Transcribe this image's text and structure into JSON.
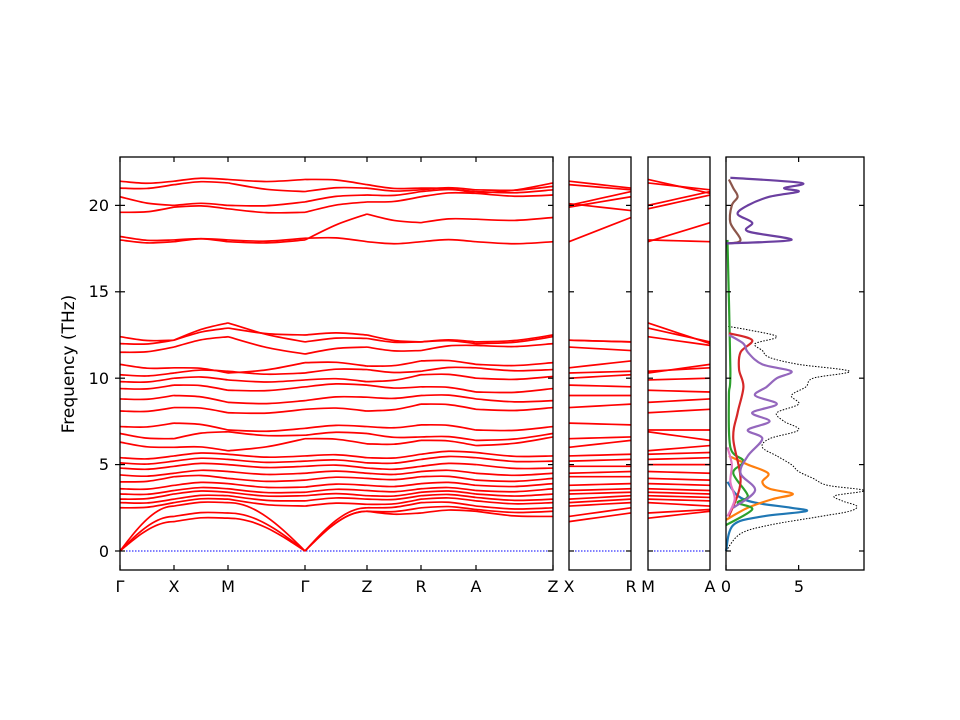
{
  "chart_data": {
    "type": "line",
    "ylabel": "Frequency (THz)",
    "ylim": [
      -1.1,
      22.8
    ],
    "yticks": [
      0,
      5,
      10,
      15,
      20
    ],
    "yticks_labels": [
      "0",
      "5",
      "10",
      "15",
      "20"
    ],
    "band_color": "#ff0000",
    "zero_line_color": "#0000ff",
    "band_panels": [
      {
        "id": "main",
        "labels": [
          "Γ",
          "X",
          "M",
          "Γ",
          "Z",
          "R",
          "A",
          "Z"
        ]
      },
      {
        "id": "xr",
        "labels": [
          "X",
          "R"
        ]
      },
      {
        "id": "ma",
        "labels": [
          "M",
          "A"
        ]
      }
    ],
    "band_frequencies": [
      {
        "id": "acoustic-1",
        "values_at_points": [
          0,
          1.7,
          1.9,
          0,
          2.3,
          2.2,
          2.3,
          2.0
        ],
        "xr": [
          1.7,
          2.2
        ],
        "ma": [
          1.9,
          2.3
        ]
      },
      {
        "id": "acoustic-2",
        "values_at_points": [
          0,
          2.0,
          2.2,
          0,
          2.3,
          2.5,
          2.4,
          2.3
        ],
        "xr": [
          2.0,
          2.5
        ],
        "ma": [
          2.2,
          2.4
        ]
      },
      {
        "id": "acoustic-3",
        "values_at_points": [
          0,
          2.6,
          2.8,
          0,
          2.5,
          2.8,
          2.6,
          2.5
        ],
        "xr": [
          2.6,
          2.8
        ],
        "ma": [
          2.8,
          2.6
        ]
      },
      {
        "id": "opt-2.5",
        "values_at_points": [
          2.5,
          2.8,
          3.0,
          2.6,
          2.7,
          3.0,
          2.9,
          2.8
        ],
        "xr": [
          2.8,
          3.0
        ],
        "ma": [
          3.0,
          2.9
        ]
      },
      {
        "id": "opt-2.8",
        "values_at_points": [
          2.8,
          3.0,
          3.2,
          2.9,
          3.0,
          3.2,
          3.1,
          3.0
        ],
        "xr": [
          3.0,
          3.2
        ],
        "ma": [
          3.2,
          3.1
        ]
      },
      {
        "id": "opt-3.0",
        "values_at_points": [
          3.0,
          3.3,
          3.4,
          3.2,
          3.2,
          3.4,
          3.3,
          3.3
        ],
        "xr": [
          3.3,
          3.4
        ],
        "ma": [
          3.4,
          3.3
        ]
      },
      {
        "id": "opt-3.3",
        "values_at_points": [
          3.3,
          3.5,
          3.6,
          3.4,
          3.5,
          3.6,
          3.5,
          3.6
        ],
        "xr": [
          3.5,
          3.6
        ],
        "ma": [
          3.6,
          3.5
        ]
      },
      {
        "id": "opt-3.6",
        "values_at_points": [
          3.6,
          3.8,
          3.9,
          3.7,
          3.8,
          3.9,
          3.8,
          3.9
        ],
        "xr": [
          3.8,
          3.9
        ],
        "ma": [
          3.9,
          3.8
        ]
      },
      {
        "id": "opt-4.0",
        "values_at_points": [
          4.0,
          4.3,
          4.2,
          4.1,
          4.2,
          4.3,
          4.1,
          4.2
        ],
        "xr": [
          4.3,
          4.3
        ],
        "ma": [
          4.2,
          4.1
        ]
      },
      {
        "id": "opt-4.4",
        "values_at_points": [
          4.4,
          4.5,
          4.6,
          4.5,
          4.5,
          4.6,
          4.5,
          4.5
        ],
        "xr": [
          4.5,
          4.6
        ],
        "ma": [
          4.6,
          4.5
        ]
      },
      {
        "id": "opt-4.8",
        "values_at_points": [
          4.8,
          4.9,
          5.0,
          4.9,
          4.8,
          4.9,
          5.0,
          4.8
        ],
        "xr": [
          4.9,
          4.9
        ],
        "ma": [
          5.0,
          5.0
        ]
      },
      {
        "id": "opt-5.1",
        "values_at_points": [
          5.1,
          5.2,
          5.3,
          5.2,
          5.1,
          5.3,
          5.4,
          5.2
        ],
        "xr": [
          5.2,
          5.3
        ],
        "ma": [
          5.3,
          5.4
        ]
      },
      {
        "id": "opt-5.4",
        "values_at_points": [
          5.4,
          5.5,
          5.6,
          5.5,
          5.4,
          5.6,
          5.7,
          5.5
        ],
        "xr": [
          5.5,
          5.6
        ],
        "ma": [
          5.6,
          5.7
        ]
      },
      {
        "id": "opt-6.3",
        "values_at_points": [
          6.3,
          6.0,
          5.8,
          6.5,
          6.2,
          6.4,
          6.1,
          6.6
        ],
        "xr": [
          6.0,
          6.4
        ],
        "ma": [
          5.8,
          6.1
        ]
      },
      {
        "id": "opt-6.8",
        "values_at_points": [
          6.8,
          6.5,
          6.9,
          6.7,
          6.8,
          6.6,
          6.4,
          6.8
        ],
        "xr": [
          6.5,
          6.6
        ],
        "ma": [
          6.9,
          6.4
        ]
      },
      {
        "id": "opt-7.2",
        "values_at_points": [
          7.2,
          7.4,
          7.0,
          7.1,
          7.2,
          7.3,
          7.0,
          7.2
        ],
        "xr": [
          7.4,
          7.3
        ],
        "ma": [
          7.0,
          7.0
        ]
      },
      {
        "id": "opt-8.1",
        "values_at_points": [
          8.1,
          8.3,
          8.0,
          8.2,
          8.1,
          8.5,
          8.2,
          8.3
        ],
        "xr": [
          8.3,
          8.5
        ],
        "ma": [
          8.0,
          8.2
        ]
      },
      {
        "id": "opt-8.8",
        "values_at_points": [
          8.8,
          9.0,
          8.6,
          8.7,
          8.9,
          9.0,
          8.8,
          8.7
        ],
        "xr": [
          9.0,
          9.0
        ],
        "ma": [
          8.6,
          8.8
        ]
      },
      {
        "id": "opt-9.4",
        "values_at_points": [
          9.4,
          9.6,
          9.3,
          9.5,
          9.6,
          9.5,
          9.2,
          9.4
        ],
        "xr": [
          9.6,
          9.5
        ],
        "ma": [
          9.3,
          9.2
        ]
      },
      {
        "id": "opt-9.8",
        "values_at_points": [
          9.8,
          10.0,
          9.9,
          9.9,
          9.8,
          10.2,
          10.0,
          10.1
        ],
        "xr": [
          10.0,
          10.2
        ],
        "ma": [
          9.9,
          10.0
        ]
      },
      {
        "id": "opt-10.2",
        "values_at_points": [
          10.2,
          10.3,
          10.4,
          10.3,
          10.5,
          10.4,
          10.6,
          10.5
        ],
        "xr": [
          10.3,
          10.4
        ],
        "ma": [
          10.4,
          10.6
        ]
      },
      {
        "id": "opt-10.8",
        "values_at_points": [
          10.8,
          10.6,
          10.3,
          10.9,
          10.7,
          11.0,
          10.8,
          10.9
        ],
        "xr": [
          10.6,
          11.0
        ],
        "ma": [
          10.3,
          10.8
        ]
      },
      {
        "id": "opt-11.5",
        "values_at_points": [
          11.5,
          11.8,
          12.4,
          11.4,
          11.8,
          11.6,
          11.9,
          12.0
        ],
        "xr": [
          11.8,
          11.6
        ],
        "ma": [
          12.4,
          11.9
        ]
      },
      {
        "id": "opt-12.0",
        "values_at_points": [
          12.0,
          12.2,
          13.2,
          12.1,
          12.3,
          12.1,
          12.0,
          12.4
        ],
        "xr": [
          12.2,
          12.1
        ],
        "ma": [
          13.2,
          12.0
        ]
      },
      {
        "id": "opt-12.4",
        "values_at_points": [
          12.4,
          12.2,
          12.9,
          12.5,
          12.5,
          12.1,
          12.1,
          12.5
        ],
        "xr": [
          12.2,
          12.1
        ],
        "ma": [
          12.9,
          12.1
        ]
      },
      {
        "id": "high-18.0",
        "values_at_points": [
          18.0,
          17.9,
          18.0,
          18.1,
          17.9,
          17.9,
          17.9,
          17.9
        ],
        "xr": [
          17.9,
          19.3
        ],
        "ma": [
          18.0,
          17.9
        ]
      },
      {
        "id": "high-18.2",
        "values_at_points": [
          18.2,
          18.0,
          17.9,
          18.0,
          19.5,
          19.0,
          19.2,
          19.3
        ],
        "xr": [
          20.1,
          19.7
        ],
        "ma": [
          17.9,
          19.0
        ]
      },
      {
        "id": "high-19.6",
        "values_at_points": [
          19.6,
          19.9,
          19.8,
          19.6,
          20.2,
          20.5,
          20.7,
          20.6
        ],
        "xr": [
          19.9,
          20.5
        ],
        "ma": [
          19.8,
          20.6
        ]
      },
      {
        "id": "high-20.5",
        "values_at_points": [
          20.5,
          20.0,
          20.0,
          20.2,
          20.6,
          20.8,
          20.8,
          20.9
        ],
        "xr": [
          20.0,
          20.8
        ],
        "ma": [
          20.0,
          20.8
        ]
      },
      {
        "id": "high-21.0",
        "values_at_points": [
          21.0,
          21.2,
          21.3,
          20.8,
          21.0,
          20.9,
          20.9,
          21.1
        ],
        "xr": [
          21.2,
          20.9
        ],
        "ma": [
          21.3,
          20.9
        ]
      },
      {
        "id": "high-21.4",
        "values_at_points": [
          21.4,
          21.4,
          21.5,
          21.5,
          21.2,
          21.0,
          20.7,
          21.3
        ],
        "xr": [
          21.4,
          21.0
        ],
        "ma": [
          21.5,
          20.7
        ]
      }
    ],
    "dos_panel": {
      "xlim": [
        0,
        9.5
      ],
      "xticks": [
        0,
        5
      ],
      "xticks_labels": [
        "0",
        "5"
      ],
      "total_color": "#000000",
      "series": [
        {
          "color": "#1f77b4",
          "freq": [
            0,
            1.5,
            2.0,
            2.3,
            2.5,
            2.8,
            3.2,
            4.0
          ],
          "dos": [
            0,
            0.5,
            2.5,
            5.5,
            4.5,
            2.0,
            0.8,
            0.1
          ]
        },
        {
          "color": "#ff7f0e",
          "freq": [
            1.8,
            2.5,
            3.0,
            3.3,
            3.6,
            4.0,
            4.5,
            5.0,
            5.5
          ],
          "dos": [
            0,
            1.5,
            3.2,
            4.6,
            3.0,
            2.5,
            2.9,
            1.5,
            0.2
          ]
        },
        {
          "color": "#2ca02c",
          "freq": [
            1.5,
            2.4,
            2.8,
            3.2,
            4.5,
            5.2,
            6.0,
            9.0,
            10.5,
            18.0
          ],
          "dos": [
            0,
            1.8,
            0.8,
            1.5,
            0.5,
            1.2,
            0.3,
            0.2,
            0.3,
            0.1
          ]
        },
        {
          "color": "#d62728",
          "freq": [
            2.0,
            4.0,
            6.5,
            8.0,
            9.5,
            10.5,
            11.5,
            12.2,
            12.6
          ],
          "dos": [
            0.2,
            1.0,
            0.5,
            0.8,
            1.2,
            0.9,
            1.0,
            1.8,
            0.2
          ]
        },
        {
          "color": "#9467bd",
          "freq": [
            2.5,
            3.5,
            4.5,
            5.5,
            6.5,
            7.0,
            7.5,
            8.0,
            8.5,
            9.0,
            9.5,
            10.0,
            10.4,
            10.8,
            11.5,
            12.0,
            12.5
          ],
          "dos": [
            0.5,
            2.0,
            1.0,
            1.5,
            2.5,
            1.5,
            3.0,
            1.8,
            3.5,
            2.0,
            2.8,
            3.5,
            4.5,
            2.5,
            1.5,
            1.2,
            0.2
          ]
        },
        {
          "color": "#8c564b",
          "freq": [
            17.8,
            18.0,
            19.0,
            20.0,
            20.5,
            21.0,
            21.5
          ],
          "dos": [
            0.2,
            1.0,
            0.3,
            0.4,
            0.8,
            0.5,
            0.2
          ]
        },
        {
          "color": "#e377c2",
          "freq": [
            2.0,
            3.0,
            4.0,
            5.0,
            6.0
          ],
          "dos": [
            0.1,
            0.6,
            0.3,
            0.4,
            0.1
          ]
        },
        {
          "color": "#6b3fa0",
          "freq": [
            17.8,
            18.0,
            18.5,
            19.0,
            19.5,
            20.0,
            20.5,
            20.8,
            21.0,
            21.3,
            21.6
          ],
          "dos": [
            0,
            4.5,
            1.5,
            1.8,
            0.8,
            1.5,
            3.0,
            5.0,
            4.0,
            5.2,
            0.3
          ]
        }
      ],
      "total": {
        "freq": [
          0,
          1.0,
          1.5,
          2.0,
          2.3,
          2.6,
          2.9,
          3.2,
          3.5,
          3.8,
          4.2,
          4.6,
          5.0,
          5.5,
          6.0,
          6.5,
          7.0,
          7.5,
          8.0,
          8.5,
          9.0,
          9.5,
          10.0,
          10.4,
          10.8,
          11.2,
          11.6,
          12.0,
          12.4,
          12.8,
          13.0
        ],
        "dos": [
          0,
          1.0,
          3.0,
          6.5,
          8.5,
          9.0,
          8.0,
          7.5,
          9.5,
          7.0,
          6.0,
          5.0,
          4.5,
          3.5,
          2.5,
          3.0,
          5.0,
          4.0,
          3.5,
          5.0,
          4.5,
          5.5,
          6.0,
          8.5,
          5.0,
          3.0,
          2.5,
          2.0,
          3.5,
          1.5,
          0.1
        ]
      }
    }
  }
}
